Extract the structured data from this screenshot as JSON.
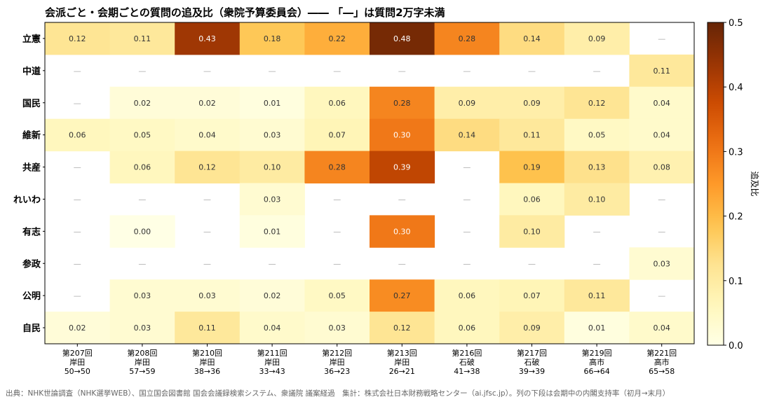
{
  "chart_data": {
    "type": "heatmap",
    "title": "会派ごと・会期ごとの質問の追及比（衆院予算委員会）―― 「―」は質問2万字未満",
    "rows": [
      "立憲",
      "中道",
      "国民",
      "維新",
      "共産",
      "れいわ",
      "有志",
      "参政",
      "公明",
      "自民"
    ],
    "columns": [
      {
        "session": "第207回",
        "pm": "岸田",
        "approval": "50→50"
      },
      {
        "session": "第208回",
        "pm": "岸田",
        "approval": "57→59"
      },
      {
        "session": "第210回",
        "pm": "岸田",
        "approval": "38→36"
      },
      {
        "session": "第211回",
        "pm": "岸田",
        "approval": "33→43"
      },
      {
        "session": "第212回",
        "pm": "岸田",
        "approval": "36→23"
      },
      {
        "session": "第213回",
        "pm": "岸田",
        "approval": "26→21"
      },
      {
        "session": "第216回",
        "pm": "石破",
        "approval": "41→38"
      },
      {
        "session": "第217回",
        "pm": "石破",
        "approval": "39→39"
      },
      {
        "session": "第219回",
        "pm": "高市",
        "approval": "66→64"
      },
      {
        "session": "第221回",
        "pm": "高市",
        "approval": "65→58"
      }
    ],
    "values": [
      [
        0.12,
        0.11,
        0.43,
        0.18,
        0.22,
        0.48,
        0.28,
        0.14,
        0.09,
        null
      ],
      [
        null,
        null,
        null,
        null,
        null,
        null,
        null,
        null,
        null,
        0.11
      ],
      [
        null,
        0.02,
        0.02,
        0.01,
        0.06,
        0.28,
        0.09,
        0.09,
        0.12,
        0.04
      ],
      [
        0.06,
        0.05,
        0.04,
        0.03,
        0.07,
        0.3,
        0.14,
        0.11,
        0.05,
        0.04
      ],
      [
        null,
        0.06,
        0.12,
        0.1,
        0.28,
        0.39,
        null,
        0.19,
        0.13,
        0.08
      ],
      [
        null,
        null,
        null,
        0.03,
        null,
        null,
        null,
        0.06,
        0.1,
        null
      ],
      [
        null,
        0.0,
        null,
        0.01,
        null,
        0.3,
        null,
        0.1,
        null,
        null
      ],
      [
        null,
        null,
        null,
        null,
        null,
        null,
        null,
        null,
        null,
        0.03
      ],
      [
        null,
        0.03,
        0.03,
        0.02,
        0.05,
        0.27,
        0.06,
        0.07,
        0.11,
        null
      ],
      [
        0.02,
        0.03,
        0.11,
        0.04,
        0.03,
        0.12,
        0.06,
        0.09,
        0.01,
        0.04
      ]
    ],
    "missing_label": "—",
    "colorbar": {
      "label": "追及比",
      "min": 0.0,
      "max": 0.5,
      "ticks": [
        "0.0",
        "0.1",
        "0.2",
        "0.3",
        "0.4",
        "0.5"
      ],
      "colormap": "YlOrBr"
    }
  },
  "footer": {
    "source": "出典：NHK世論調査（NHK選挙WEB）、国立国会図書館 国会会議録検索システム、衆議院 議案経過　集計：株式会社日本財務戦略センター（ai.jfsc.jp）。列の下段は会期中の内閣支持率（初月→末月）"
  }
}
